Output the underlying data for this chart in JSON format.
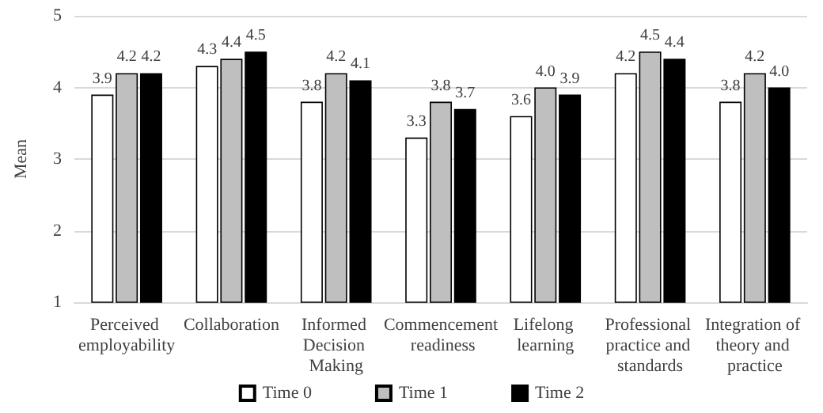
{
  "chart_data": {
    "type": "bar",
    "ylabel": "Mean",
    "categories": [
      "Perceived employability",
      "Collaboration",
      "Informed Decision Making",
      "Commencement readiness",
      "Lifelong learning",
      "Professional practice and standards",
      "Integration of theory and practice"
    ],
    "series": [
      {
        "name": "Time 0",
        "color": "#ffffff",
        "values": [
          3.9,
          4.3,
          3.8,
          3.3,
          3.6,
          4.2,
          3.8
        ],
        "value_labels": [
          "3.9",
          "4.3",
          "3.8",
          "3.3",
          "3.6",
          "4.2",
          "3.8"
        ]
      },
      {
        "name": "Time 1",
        "color": "#bfbfbf",
        "values": [
          4.2,
          4.4,
          4.2,
          3.8,
          4.0,
          4.5,
          4.2
        ],
        "value_labels": [
          "4.2",
          "4.4",
          "4.2",
          "3.8",
          "4.0",
          "4.5",
          "4.2"
        ]
      },
      {
        "name": "Time 2",
        "color": "#000000",
        "values": [
          4.2,
          4.5,
          4.1,
          3.7,
          3.9,
          4.4,
          4.0
        ],
        "value_labels": [
          "4.2",
          "4.5",
          "4.1",
          "3.7",
          "3.9",
          "4.4",
          "4.0"
        ]
      }
    ],
    "ylim": [
      1,
      5
    ],
    "yticks": [
      1,
      2,
      3,
      4,
      5
    ],
    "grid": "y",
    "legend": "bottom"
  }
}
